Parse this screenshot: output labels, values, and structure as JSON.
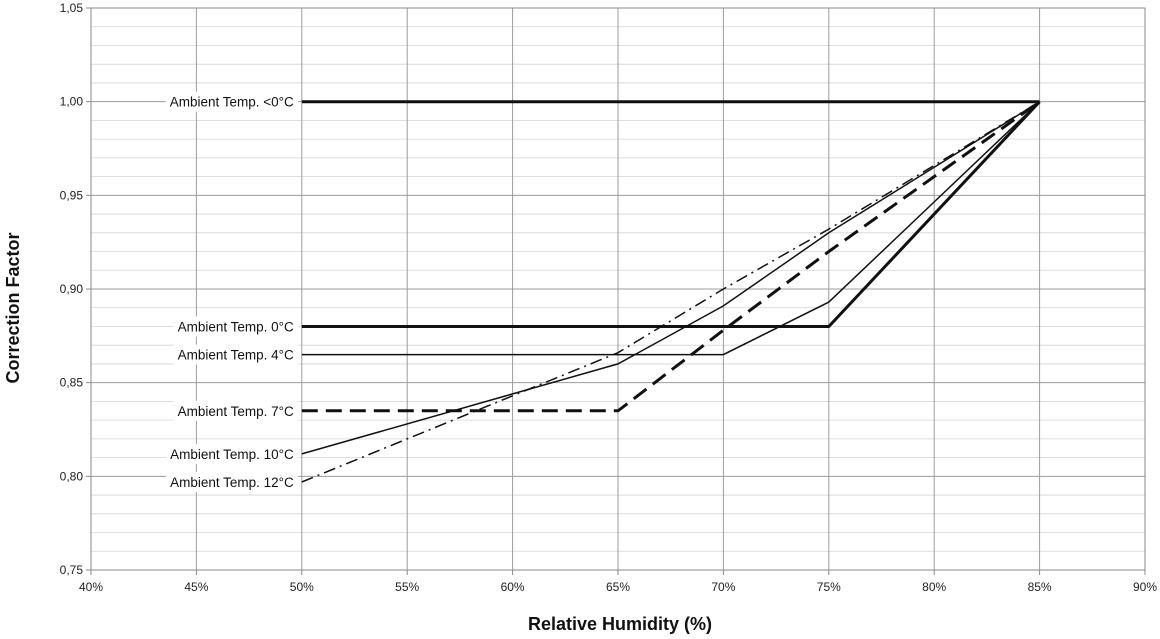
{
  "chart_data": {
    "type": "line",
    "xlabel": "Relative Humidity (%)",
    "ylabel": "Correction Factor",
    "xlim": [
      40,
      90
    ],
    "ylim": [
      0.75,
      1.05
    ],
    "x_ticks": [
      "40%",
      "45%",
      "50%",
      "55%",
      "60%",
      "65%",
      "70%",
      "75%",
      "80%",
      "85%",
      "90%"
    ],
    "y_ticks": [
      "0,75",
      "0,80",
      "0,85",
      "0,90",
      "0,95",
      "1,00",
      "1,05"
    ],
    "grid": true,
    "series": [
      {
        "label": "Ambient Temp. <0°C",
        "style": "solid",
        "weight": "heavy",
        "x": [
          50,
          85
        ],
        "y": [
          1.0,
          1.0
        ]
      },
      {
        "label": "Ambient Temp. 0°C",
        "style": "solid",
        "weight": "heavy",
        "x": [
          50,
          75,
          85
        ],
        "y": [
          0.88,
          0.88,
          1.0
        ]
      },
      {
        "label": "Ambient Temp. 4°C",
        "style": "solid",
        "weight": "thin",
        "x": [
          50,
          70,
          75,
          85
        ],
        "y": [
          0.865,
          0.865,
          0.893,
          1.0
        ]
      },
      {
        "label": "Ambient Temp. 7°C",
        "style": "dashed",
        "weight": "heavy",
        "x": [
          50,
          65,
          70,
          75,
          85
        ],
        "y": [
          0.835,
          0.835,
          0.878,
          0.92,
          1.0
        ]
      },
      {
        "label": "Ambient Temp. 10°C",
        "style": "solid",
        "weight": "thin",
        "x": [
          50,
          65,
          70,
          75,
          85
        ],
        "y": [
          0.812,
          0.86,
          0.891,
          0.93,
          1.0
        ]
      },
      {
        "label": "Ambient Temp. 12°C",
        "style": "dashdot",
        "weight": "thin",
        "x": [
          50,
          65,
          70,
          75,
          85
        ],
        "y": [
          0.797,
          0.866,
          0.9,
          0.932,
          1.0
        ]
      }
    ]
  }
}
